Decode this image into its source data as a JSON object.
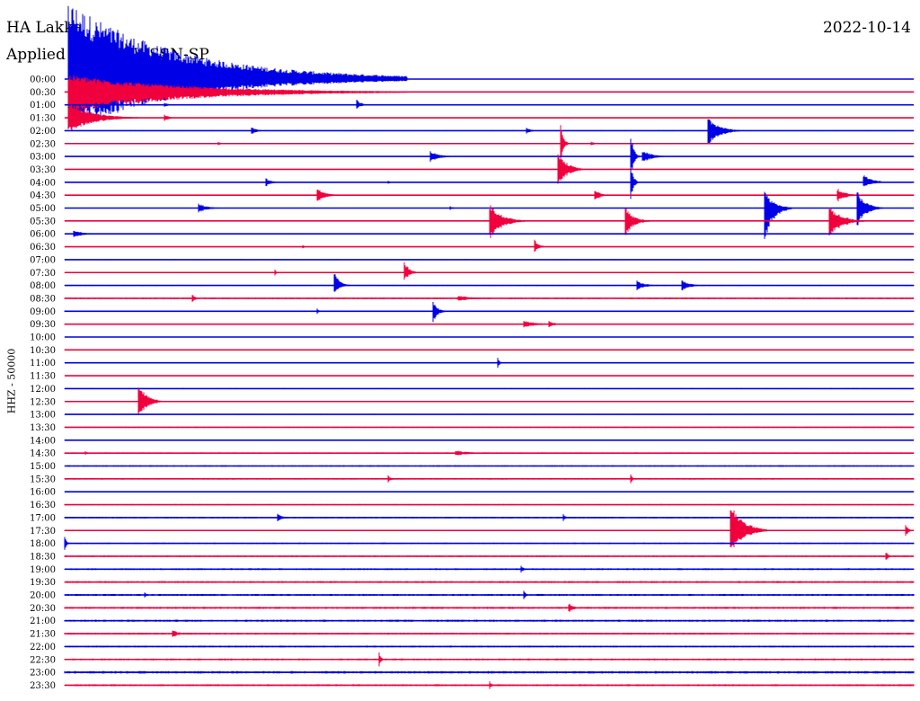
{
  "header": {
    "station": "HA Lakka",
    "date": "2022-10-14",
    "filter": "Applied filter: WWSSN-SP",
    "channel": "HHZ - 50000"
  },
  "colors": {
    "even_rows": "#0000e6",
    "odd_rows": "#f0003c",
    "text": "#000000"
  },
  "chart_data": {
    "type": "line",
    "title": "HA Lakka",
    "date": "2022-10-14",
    "filter": "WWSSN-SP",
    "ylabel": "HHZ - 50000",
    "row_labels": [
      "00:00",
      "00:30",
      "01:00",
      "01:30",
      "02:00",
      "02:30",
      "03:00",
      "03:30",
      "04:00",
      "04:30",
      "05:00",
      "05:30",
      "06:00",
      "06:30",
      "07:00",
      "07:30",
      "08:00",
      "08:30",
      "09:00",
      "09:30",
      "10:00",
      "10:30",
      "11:00",
      "11:30",
      "12:00",
      "12:30",
      "13:00",
      "13:30",
      "14:00",
      "14:30",
      "15:00",
      "15:30",
      "16:00",
      "16:30",
      "17:00",
      "17:30",
      "18:00",
      "18:30",
      "19:00",
      "19:30",
      "20:00",
      "20:30",
      "21:00",
      "21:30",
      "22:00",
      "22:30",
      "23:00",
      "23:30"
    ],
    "row_minutes": 30,
    "noise": [
      0.2,
      0.4,
      0.3,
      0.3,
      0.5,
      0.5,
      0.4,
      0.5,
      0.5,
      0.5,
      0.4,
      0.5,
      0.5,
      0.4,
      0.5,
      0.5,
      0.6,
      0.9,
      0.6,
      0.6,
      0.4,
      0.5,
      0.5,
      0.5,
      0.5,
      0.4,
      0.5,
      0.7,
      0.6,
      0.8,
      0.8,
      0.8,
      0.7,
      0.7,
      0.9,
      0.8,
      0.8,
      0.9,
      1.0,
      1.1,
      1.1,
      1.2,
      1.2,
      1.1,
      1.0,
      1.0,
      1.4,
      1.1
    ],
    "events": [
      {
        "row": 0,
        "minute": 0.1,
        "up": 88,
        "down": 60,
        "coda": 12
      },
      {
        "row": 1,
        "minute": 0.1,
        "up": 20,
        "down": 24,
        "coda": 12
      },
      {
        "row": 2,
        "minute": 10.3,
        "up": 7,
        "down": 5,
        "coda": 0.5
      },
      {
        "row": 2,
        "minute": 3.5,
        "up": 3,
        "down": 3,
        "coda": 0.5
      },
      {
        "row": 3,
        "minute": 0.1,
        "up": 18,
        "down": 18,
        "coda": 2.5
      },
      {
        "row": 3,
        "minute": 3.5,
        "up": 5,
        "down": 5,
        "coda": 0.5
      },
      {
        "row": 4,
        "minute": 6.6,
        "up": 4,
        "down": 4,
        "coda": 0.6
      },
      {
        "row": 4,
        "minute": 16.3,
        "up": 4,
        "down": 4,
        "coda": 0.5
      },
      {
        "row": 4,
        "minute": 22.7,
        "up": 17,
        "down": 20,
        "coda": 1.2
      },
      {
        "row": 5,
        "minute": 17.5,
        "up": 30,
        "down": 28,
        "coda": 0.3
      },
      {
        "row": 5,
        "minute": 5.4,
        "up": 3,
        "down": 3,
        "coda": 0.3
      },
      {
        "row": 5,
        "minute": 18.6,
        "up": 3,
        "down": 3,
        "coda": 0.3
      },
      {
        "row": 6,
        "minute": 12.9,
        "up": 7,
        "down": 7,
        "coda": 0.9
      },
      {
        "row": 6,
        "minute": 20.0,
        "up": 30,
        "down": 28,
        "coda": 0.3
      },
      {
        "row": 6,
        "minute": 20.4,
        "up": 8,
        "down": 8,
        "coda": 1.0
      },
      {
        "row": 7,
        "minute": 17.4,
        "up": 25,
        "down": 24,
        "coda": 0.9
      },
      {
        "row": 8,
        "minute": 7.1,
        "up": 5,
        "down": 5,
        "coda": 0.6
      },
      {
        "row": 8,
        "minute": 11.4,
        "up": 3,
        "down": 3,
        "coda": 0.3
      },
      {
        "row": 8,
        "minute": 28.2,
        "up": 10,
        "down": 6,
        "coda": 1.0
      },
      {
        "row": 8,
        "minute": 20.0,
        "up": 20,
        "down": 20,
        "coda": 0.3
      },
      {
        "row": 9,
        "minute": 8.9,
        "up": 9,
        "down": 9,
        "coda": 0.9
      },
      {
        "row": 9,
        "minute": 18.7,
        "up": 8,
        "down": 8,
        "coda": 0.6
      },
      {
        "row": 9,
        "minute": 27.3,
        "up": 8,
        "down": 8,
        "coda": 0.9
      },
      {
        "row": 10,
        "minute": 4.7,
        "up": 6,
        "down": 6,
        "coda": 0.9
      },
      {
        "row": 10,
        "minute": 24.7,
        "up": 22,
        "down": 42,
        "coda": 1.0
      },
      {
        "row": 10,
        "minute": 28.0,
        "up": 20,
        "down": 22,
        "coda": 0.9
      },
      {
        "row": 10,
        "minute": 13.6,
        "up": 3,
        "down": 3,
        "coda": 0.3
      },
      {
        "row": 11,
        "minute": 15.0,
        "up": 20,
        "down": 22,
        "coda": 1.3
      },
      {
        "row": 11,
        "minute": 19.8,
        "up": 16,
        "down": 18,
        "coda": 0.9
      },
      {
        "row": 11,
        "minute": 27.0,
        "up": 18,
        "down": 20,
        "coda": 1.3
      },
      {
        "row": 12,
        "minute": 0.3,
        "up": 4,
        "down": 4,
        "coda": 1.2
      },
      {
        "row": 13,
        "minute": 16.6,
        "up": 8,
        "down": 6,
        "coda": 0.5
      },
      {
        "row": 13,
        "minute": 8.4,
        "up": 3,
        "down": 3,
        "coda": 0.2
      },
      {
        "row": 15,
        "minute": 7.4,
        "up": 6,
        "down": 6,
        "coda": 0.2
      },
      {
        "row": 15,
        "minute": 12.0,
        "up": 14,
        "down": 10,
        "coda": 0.5
      },
      {
        "row": 16,
        "minute": 9.5,
        "up": 18,
        "down": 10,
        "coda": 0.6
      },
      {
        "row": 16,
        "minute": 20.2,
        "up": 6,
        "down": 6,
        "coda": 0.9
      },
      {
        "row": 16,
        "minute": 21.8,
        "up": 6,
        "down": 6,
        "coda": 0.9
      },
      {
        "row": 17,
        "minute": 4.5,
        "up": 6,
        "down": 6,
        "coda": 0.3
      },
      {
        "row": 17,
        "minute": 13.9,
        "up": 3,
        "down": 3,
        "coda": 2.0
      },
      {
        "row": 18,
        "minute": 13.0,
        "up": 12,
        "down": 14,
        "coda": 0.5
      },
      {
        "row": 18,
        "minute": 8.9,
        "up": 4,
        "down": 4,
        "coda": 0.2
      },
      {
        "row": 19,
        "minute": 16.2,
        "up": 4,
        "down": 4,
        "coda": 1.6
      },
      {
        "row": 19,
        "minute": 17.1,
        "up": 4,
        "down": 4,
        "coda": 0.6
      },
      {
        "row": 22,
        "minute": 15.3,
        "up": 7,
        "down": 7,
        "coda": 0.2
      },
      {
        "row": 25,
        "minute": 2.6,
        "up": 22,
        "down": 20,
        "coda": 0.9
      },
      {
        "row": 29,
        "minute": 0.7,
        "up": 3,
        "down": 3,
        "coda": 0.3
      },
      {
        "row": 29,
        "minute": 13.8,
        "up": 3,
        "down": 3,
        "coda": 1.6
      },
      {
        "row": 31,
        "minute": 11.4,
        "up": 6,
        "down": 6,
        "coda": 0.3
      },
      {
        "row": 31,
        "minute": 20.0,
        "up": 5,
        "down": 5,
        "coda": 0.2
      },
      {
        "row": 34,
        "minute": 7.5,
        "up": 5,
        "down": 5,
        "coda": 0.6
      },
      {
        "row": 34,
        "minute": 17.6,
        "up": 8,
        "down": 8,
        "coda": 0.2
      },
      {
        "row": 35,
        "minute": 23.5,
        "up": 36,
        "down": 30,
        "coda": 1.3
      },
      {
        "row": 35,
        "minute": 29.7,
        "up": 10,
        "down": 10,
        "coda": 0.3
      },
      {
        "row": 36,
        "minute": 0.0,
        "up": 8,
        "down": 8,
        "coda": 0.2
      },
      {
        "row": 37,
        "minute": 29.0,
        "up": 6,
        "down": 6,
        "coda": 0.3
      },
      {
        "row": 38,
        "minute": 16.1,
        "up": 5,
        "down": 5,
        "coda": 0.3
      },
      {
        "row": 40,
        "minute": 16.2,
        "up": 8,
        "down": 8,
        "coda": 0.2
      },
      {
        "row": 40,
        "minute": 2.8,
        "up": 5,
        "down": 5,
        "coda": 0.2
      },
      {
        "row": 41,
        "minute": 17.8,
        "up": 6,
        "down": 6,
        "coda": 0.5
      },
      {
        "row": 43,
        "minute": 3.8,
        "up": 5,
        "down": 5,
        "coda": 0.6
      },
      {
        "row": 45,
        "minute": 11.1,
        "up": 10,
        "down": 10,
        "coda": 0.2
      },
      {
        "row": 47,
        "minute": 15.0,
        "up": 6,
        "down": 6,
        "coda": 0.2
      }
    ]
  }
}
